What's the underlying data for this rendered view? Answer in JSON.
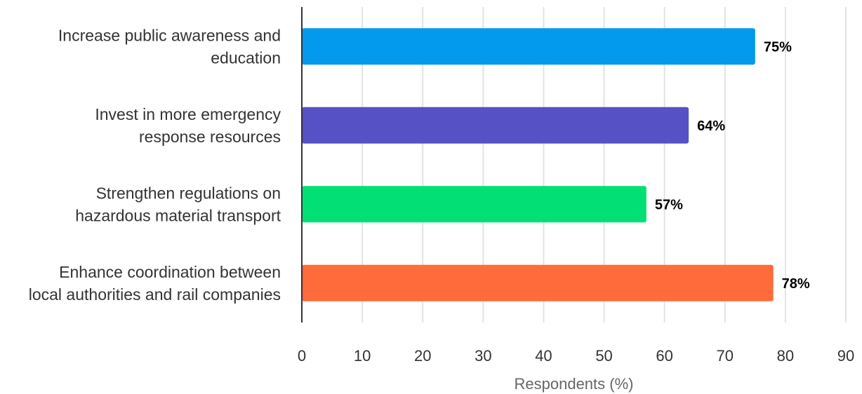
{
  "chart_data": {
    "type": "bar",
    "orientation": "horizontal",
    "categories": [
      [
        "Increase public awareness and",
        "education"
      ],
      [
        "Invest in more emergency",
        "response resources"
      ],
      [
        "Strengthen regulations on",
        "hazardous material transport"
      ],
      [
        "Enhance coordination between",
        "local authorities and rail companies"
      ]
    ],
    "values": [
      75,
      64,
      57,
      78
    ],
    "value_labels": [
      "75%",
      "64%",
      "57%",
      "78%"
    ],
    "colors": [
      "#0399EC",
      "#5651C4",
      "#02E075",
      "#FF6B3A"
    ],
    "xlabel": "Respondents (%)",
    "ylabel": "",
    "title": "",
    "xlim": [
      0,
      90
    ],
    "xticks": [
      0,
      10,
      20,
      30,
      40,
      50,
      60,
      70,
      80,
      90
    ],
    "grid": "vertical",
    "legend": "none"
  }
}
